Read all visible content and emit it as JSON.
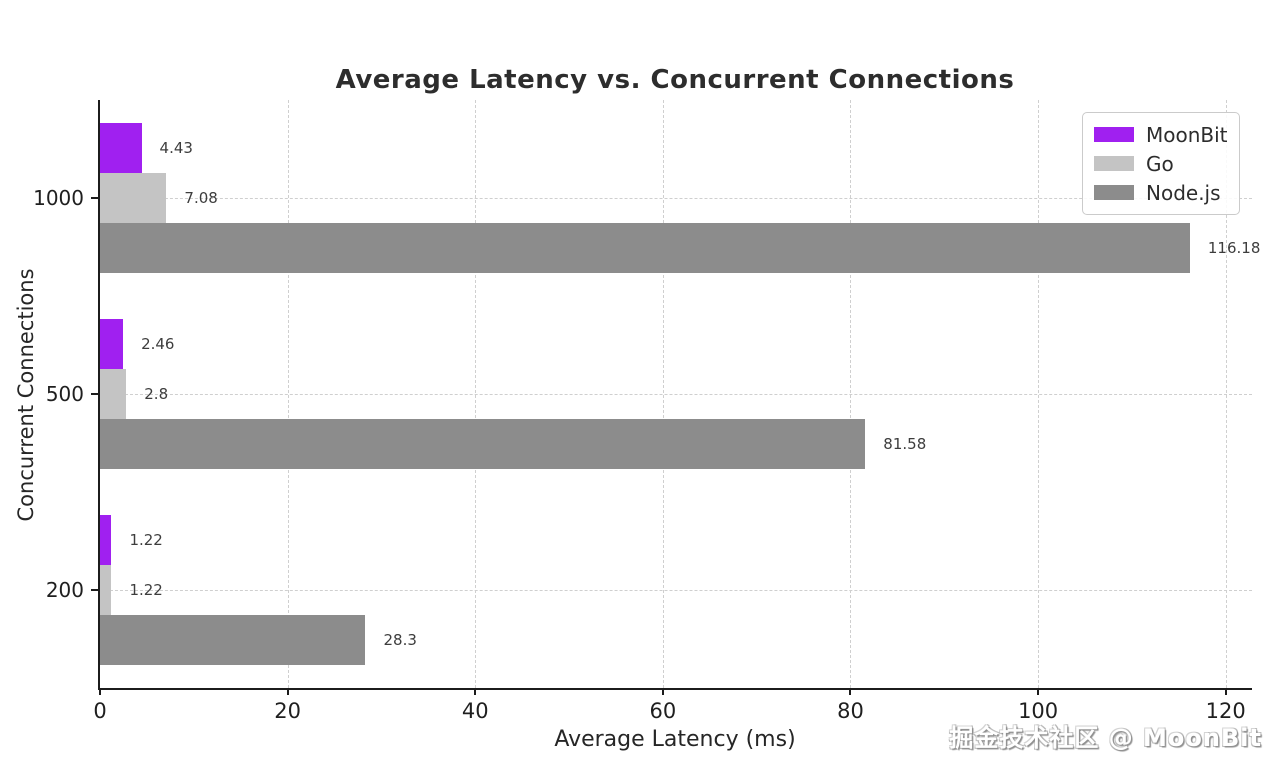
{
  "page": {
    "watermark": "掘金技术社区 @ MoonBit"
  },
  "chart_data": {
    "type": "bar",
    "orientation": "horizontal",
    "title": "Average Latency vs. Concurrent Connections",
    "xlabel": "Average Latency (ms)",
    "ylabel": "Concurrent Connections",
    "categories": [
      "1000",
      "500",
      "200"
    ],
    "series": [
      {
        "name": "MoonBit",
        "color": "#a020f0",
        "values": [
          4.43,
          2.46,
          1.22
        ],
        "value_labels": [
          "4.43",
          "2.46",
          "1.22"
        ]
      },
      {
        "name": "Go",
        "color": "#c4c4c4",
        "values": [
          7.08,
          2.8,
          1.22
        ],
        "value_labels": [
          "7.08",
          "2.8",
          "1.22"
        ]
      },
      {
        "name": "Node.js",
        "color": "#8c8c8c",
        "values": [
          116.18,
          81.58,
          28.3
        ],
        "value_labels": [
          "116.18",
          "81.58",
          "28.3"
        ]
      }
    ],
    "x_ticks": [
      "0",
      "20",
      "40",
      "60",
      "80",
      "100",
      "120"
    ],
    "xlim": [
      0,
      122.8
    ],
    "grid": true,
    "grid_style": "dashed",
    "legend_position": "upper right",
    "colors": {
      "grid": "#cfcfcf",
      "spine": "#1c1c1c",
      "tick_label": "#1f1f1f",
      "value_label": "#3d3d3d",
      "title": "#2d2d2d"
    }
  }
}
